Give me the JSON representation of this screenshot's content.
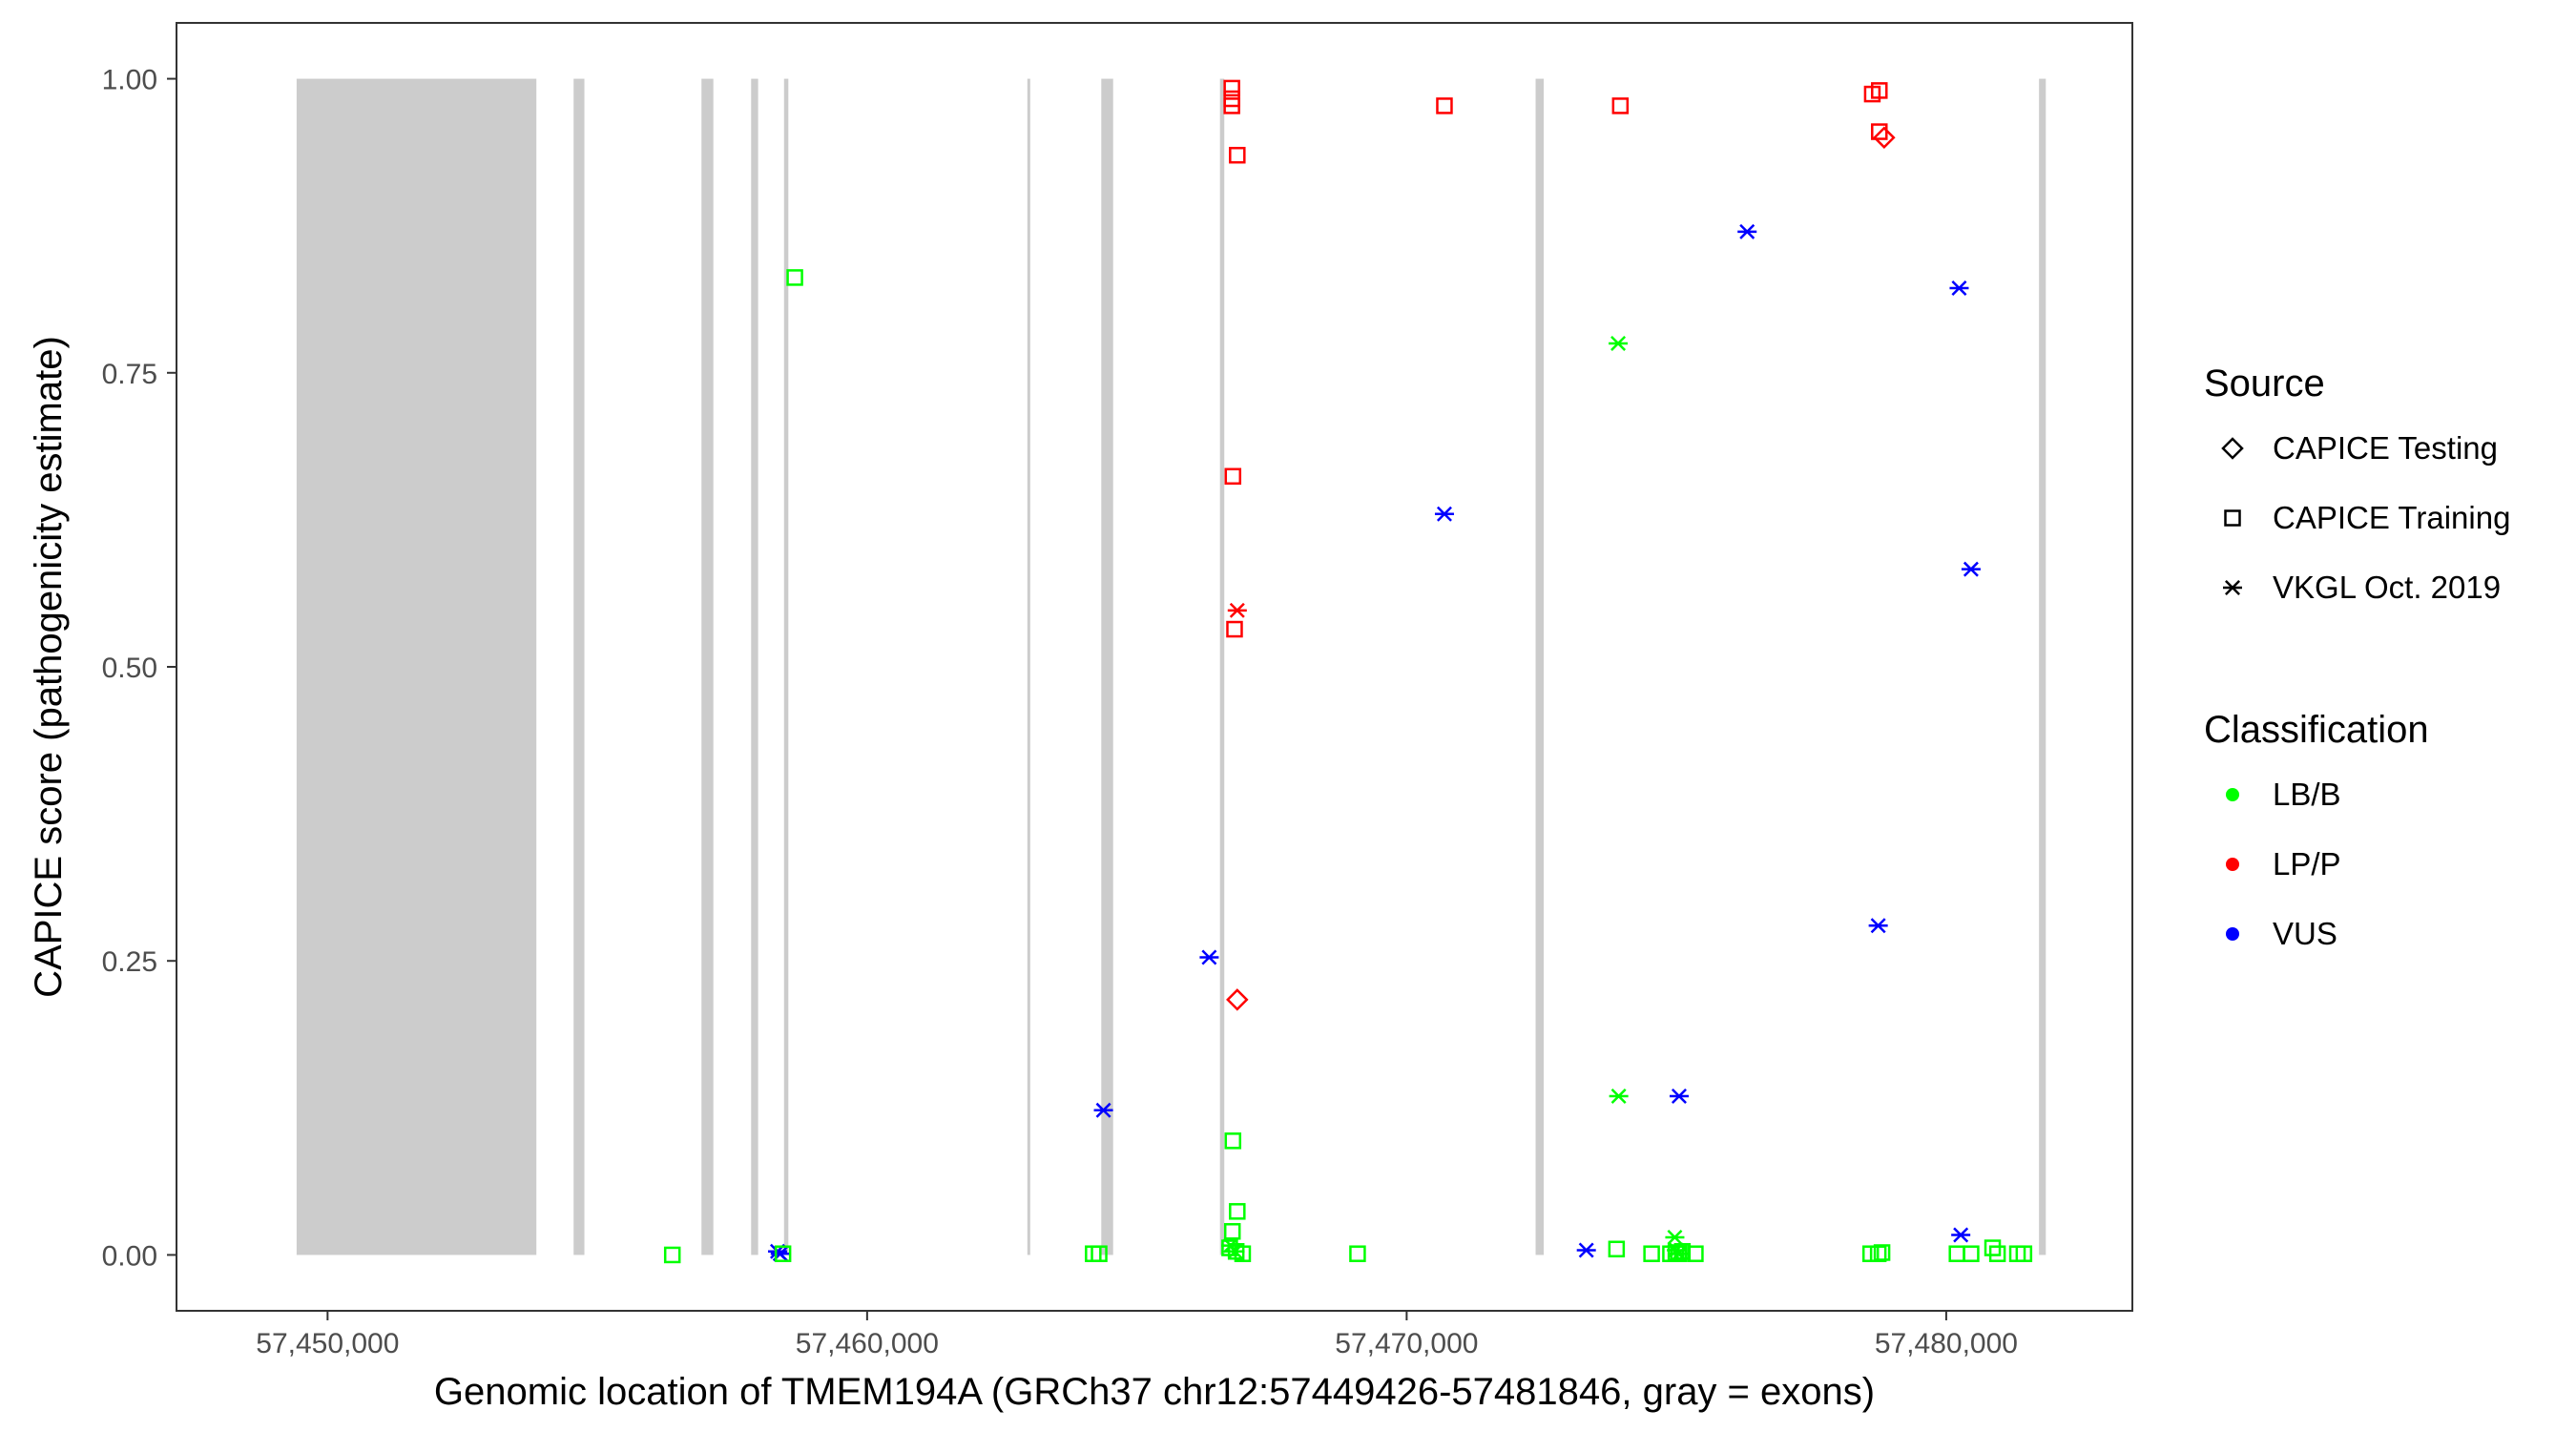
{
  "chart_data": {
    "type": "scatter",
    "xlabel": "Genomic location of TMEM194A (GRCh37 chr12:57449426-57481846, gray = exons)",
    "ylabel": "CAPICE score (pathogenicity estimate)",
    "xlim": [
      57447200,
      57483450
    ],
    "ylim": [
      -0.0475,
      1.0475
    ],
    "x_ticks": [
      57450000,
      57460000,
      57470000,
      57480000
    ],
    "x_tick_labels": [
      "57,450,000",
      "57,460,000",
      "57,470,000",
      "57,480,000"
    ],
    "y_ticks": [
      0,
      0.25,
      0.5,
      0.75,
      1.0
    ],
    "y_tick_labels": [
      "0.00",
      "0.25",
      "0.50",
      "0.75",
      "1.00"
    ],
    "grid": false,
    "legend_position": "right",
    "exons": [
      [
        57449426,
        57453870
      ],
      [
        57454560,
        57454760
      ],
      [
        57456930,
        57457150
      ],
      [
        57457850,
        57457980
      ],
      [
        57458460,
        57458540
      ],
      [
        57462970,
        57463010
      ],
      [
        57464340,
        57464560
      ],
      [
        57466540,
        57466620
      ],
      [
        57472390,
        57472540
      ],
      [
        57481720,
        57481846
      ]
    ],
    "colors": {
      "LB/B": "#00ff00",
      "LP/P": "#ff0000",
      "VUS": "#0000ff",
      "exon": "#cccccc"
    },
    "legends": [
      {
        "title": "Source",
        "items": [
          {
            "label": "CAPICE Testing",
            "shape": "diamond"
          },
          {
            "label": "CAPICE Training",
            "shape": "square"
          },
          {
            "label": "VKGL Oct. 2019",
            "shape": "asterisk"
          }
        ]
      },
      {
        "title": "Classification",
        "items": [
          {
            "label": "LB/B",
            "color": "#00ff00"
          },
          {
            "label": "LP/P",
            "color": "#ff0000"
          },
          {
            "label": "VUS",
            "color": "#0000ff"
          }
        ]
      }
    ],
    "series": [
      {
        "source": "CAPICE Training",
        "class": "LP/P",
        "points": [
          [
            57466760,
            0.992
          ],
          [
            57466760,
            0.983
          ],
          [
            57466760,
            0.977
          ],
          [
            57466860,
            0.935
          ],
          [
            57470700,
            0.977
          ],
          [
            57473960,
            0.977
          ],
          [
            57478630,
            0.987
          ],
          [
            57478760,
            0.99
          ],
          [
            57478760,
            0.955
          ],
          [
            57466780,
            0.662
          ],
          [
            57466810,
            0.532
          ]
        ]
      },
      {
        "source": "CAPICE Testing",
        "class": "LP/P",
        "points": [
          [
            57478850,
            0.95
          ],
          [
            57466860,
            0.217
          ]
        ]
      },
      {
        "source": "VKGL Oct. 2019",
        "class": "LP/P",
        "points": [
          [
            57466860,
            0.548
          ]
        ]
      },
      {
        "source": "VKGL Oct. 2019",
        "class": "VUS",
        "points": [
          [
            57476310,
            0.87
          ],
          [
            57480240,
            0.822
          ],
          [
            57470700,
            0.63
          ],
          [
            57480460,
            0.583
          ],
          [
            57478740,
            0.28
          ],
          [
            57466340,
            0.253
          ],
          [
            57464380,
            0.123
          ],
          [
            57475050,
            0.135
          ],
          [
            57458340,
            0.003
          ],
          [
            57458390,
            0.001
          ],
          [
            57473330,
            0.004
          ],
          [
            57480270,
            0.017
          ]
        ]
      },
      {
        "source": "VKGL Oct. 2019",
        "class": "LB/B",
        "points": [
          [
            57473920,
            0.775
          ],
          [
            57473930,
            0.135
          ],
          [
            57474970,
            0.015
          ],
          [
            57466740,
            0.008
          ],
          [
            57466820,
            0.003
          ],
          [
            57475000,
            0.004
          ],
          [
            57475040,
            0.001
          ]
        ]
      },
      {
        "source": "CAPICE Training",
        "class": "LB/B",
        "points": [
          [
            57458660,
            0.831
          ],
          [
            57456390,
            0.0
          ],
          [
            57458440,
            0.001
          ],
          [
            57464190,
            0.001
          ],
          [
            57464300,
            0.001
          ],
          [
            57466780,
            0.097
          ],
          [
            57466860,
            0.037
          ],
          [
            57466770,
            0.02
          ],
          [
            57466720,
            0.006
          ],
          [
            57466840,
            0.003
          ],
          [
            57466960,
            0.001
          ],
          [
            57469090,
            0.001
          ],
          [
            57473890,
            0.005
          ],
          [
            57474540,
            0.001
          ],
          [
            57474890,
            0.001
          ],
          [
            57474990,
            0.002
          ],
          [
            57475040,
            0.001
          ],
          [
            57475110,
            0.003
          ],
          [
            57475350,
            0.001
          ],
          [
            57478600,
            0.001
          ],
          [
            57478740,
            0.001
          ],
          [
            57478810,
            0.002
          ],
          [
            57480200,
            0.001
          ],
          [
            57480460,
            0.001
          ],
          [
            57480860,
            0.006
          ],
          [
            57480950,
            0.001
          ],
          [
            57481320,
            0.001
          ],
          [
            57481440,
            0.001
          ]
        ]
      }
    ]
  }
}
